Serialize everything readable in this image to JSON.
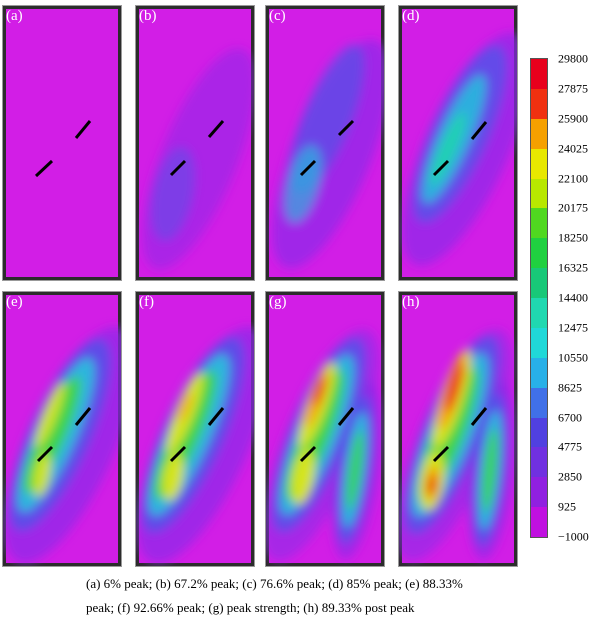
{
  "panels": [
    {
      "label": "(a)"
    },
    {
      "label": "(b)"
    },
    {
      "label": "(c)"
    },
    {
      "label": "(d)"
    },
    {
      "label": "(e)"
    },
    {
      "label": "(f)"
    },
    {
      "label": "(g)"
    },
    {
      "label": "(h)"
    }
  ],
  "colorbar": {
    "ticks": [
      "29800",
      "27875",
      "25900",
      "24025",
      "22100",
      "20175",
      "18250",
      "16325",
      "14400",
      "12475",
      "10550",
      "8625",
      "6700",
      "4775",
      "2850",
      "925",
      "−1000"
    ],
    "colors": [
      "#e8001c",
      "#f03010",
      "#f5a000",
      "#e8e800",
      "#b8e800",
      "#50d820",
      "#20d040",
      "#18c878",
      "#20d8b0",
      "#20d8d8",
      "#28b0e8",
      "#4070e8",
      "#5040e0",
      "#7030e0",
      "#9020e0",
      "#c010e0"
    ]
  },
  "caption": {
    "line1": "(a) 6% peak; (b) 67.2% peak; (c) 76.6% peak; (d) 85% peak; (e) 88.33%",
    "line2": "peak; (f) 92.66% peak; (g) peak strength; (h) 89.33% post peak"
  }
}
